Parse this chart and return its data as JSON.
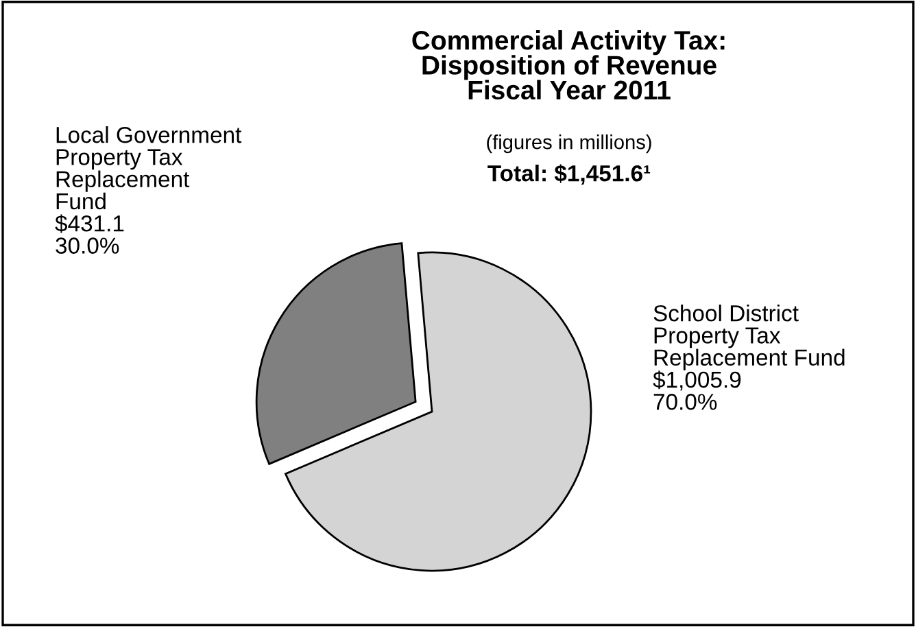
{
  "chart_data": {
    "type": "pie",
    "title": "Commercial Activity Tax:\nDisposition of Revenue\nFiscal Year 2011",
    "subtitle": "(figures in millions)",
    "annotations": [
      "Total: $1,451.6¹"
    ],
    "categories": [
      "Local Government\nProperty Tax\nReplacement\nFund",
      "School District\nProperty Tax\nReplacement Fund"
    ],
    "values": [
      431.1,
      1005.9
    ],
    "value_labels": [
      "$431.1\n30.0%",
      "$1,005.9\n70.0%"
    ],
    "colors": [
      "#808080",
      "#d4d4d4"
    ]
  }
}
